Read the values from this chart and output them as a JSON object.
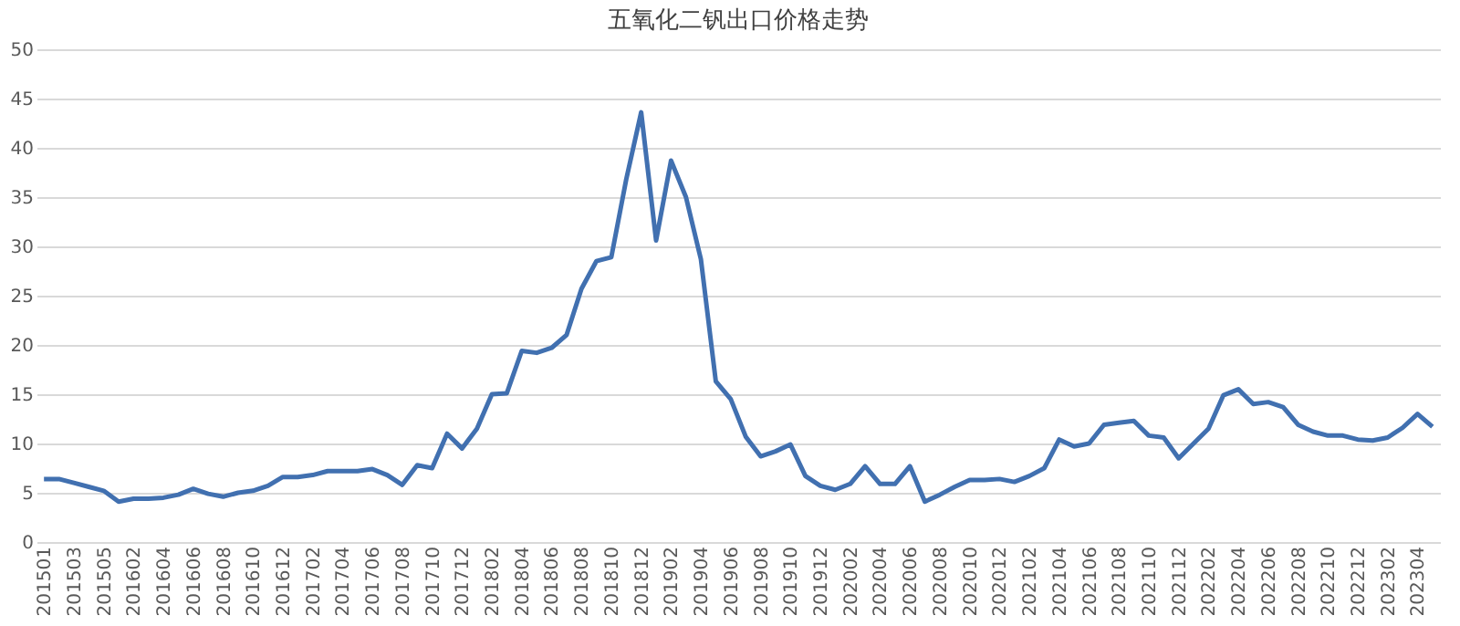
{
  "chart_data": {
    "type": "line",
    "title": "五氧化二钒出口价格走势",
    "categories": [
      "201501",
      null,
      "201503",
      null,
      "201505",
      null,
      "201602",
      null,
      "201604",
      null,
      "201606",
      null,
      "201608",
      null,
      "201610",
      null,
      "201612",
      null,
      "201702",
      null,
      "201704",
      null,
      "201706",
      null,
      "201708",
      null,
      "201710",
      null,
      "201712",
      null,
      "201802",
      null,
      "201804",
      null,
      "201806",
      null,
      "201808",
      null,
      "201810",
      null,
      "201812",
      null,
      "201902",
      null,
      "201904",
      null,
      "201906",
      null,
      "201908",
      null,
      "201910",
      null,
      "201912",
      null,
      "202002",
      null,
      "202004",
      null,
      "202006",
      null,
      "202008",
      null,
      "202010",
      null,
      "202012",
      null,
      "202102",
      null,
      "202104",
      null,
      "202106",
      null,
      "202108",
      null,
      "202110",
      null,
      "202112",
      null,
      "202202",
      null,
      "202204",
      null,
      "202206",
      null,
      "202208",
      null,
      "202210",
      null,
      "202212",
      null,
      "202302",
      null,
      "202304",
      null
    ],
    "series": [
      {
        "color": "#4170b0",
        "values": [
          6.4,
          6.4,
          6.0,
          5.6,
          5.2,
          4.1,
          4.4,
          4.4,
          4.5,
          4.8,
          5.4,
          4.9,
          4.6,
          5.0,
          5.2,
          5.7,
          6.6,
          6.6,
          6.8,
          7.2,
          7.2,
          7.2,
          7.4,
          6.8,
          5.8,
          7.8,
          7.5,
          11.0,
          9.5,
          11.5,
          15.0,
          15.1,
          19.4,
          19.2,
          19.7,
          21.0,
          25.7,
          28.5,
          28.9,
          36.8,
          43.6,
          30.6,
          38.7,
          35.0,
          28.7,
          16.3,
          14.5,
          10.7,
          8.7,
          9.2,
          9.9,
          6.7,
          5.7,
          5.3,
          5.9,
          7.7,
          5.9,
          5.9,
          7.7,
          4.1,
          4.8,
          5.6,
          6.3,
          6.3,
          6.4,
          6.1,
          6.7,
          7.5,
          10.4,
          9.7,
          10.0,
          11.9,
          12.1,
          12.3,
          10.8,
          10.6,
          8.5,
          10.0,
          11.5,
          14.9,
          15.5,
          14.0,
          14.2,
          13.7,
          11.9,
          11.2,
          10.8,
          10.8,
          10.4,
          10.3,
          10.6,
          11.6,
          13.0,
          11.7
        ]
      }
    ],
    "ylim": [
      0,
      50
    ],
    "yticks": [
      0,
      5,
      10,
      15,
      20,
      25,
      30,
      35,
      40,
      45,
      50
    ],
    "grid": "y",
    "marker": "none",
    "line_style": "solid"
  }
}
